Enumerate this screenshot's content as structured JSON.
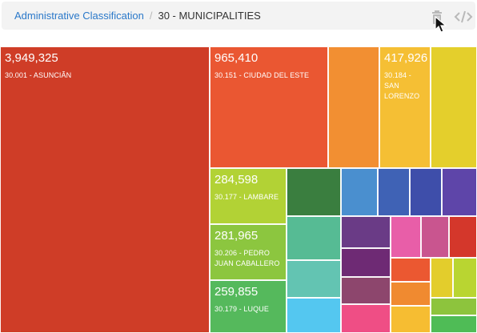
{
  "breadcrumb": {
    "root_label": "Administrative Classification",
    "separator": "/",
    "current_label": "30 - MUNICIPALITIES"
  },
  "toolbar": {
    "delete_icon": "trash-icon",
    "embed_icon": "code-icon",
    "cursor_icon": "mouse-pointer-icon"
  },
  "treemap": {
    "labeled_tiles": [
      {
        "value": "3,949,325",
        "label": "30.001 - ASUNCIÃN",
        "color": "#cf3d27"
      },
      {
        "value": "965,410",
        "label": "30.151 - CIUDAD DEL ESTE",
        "color": "#ea5732"
      },
      {
        "value": "417,926",
        "label": "30.184 - SAN LORENZO",
        "color": "#f5bf34"
      },
      {
        "value": "284,598",
        "label": "30.177 - LAMBARE",
        "color": "#b2d235"
      },
      {
        "value": "281,965",
        "label": "30.206 - PEDRO JUAN CABALLERO",
        "color": "#8cc63f"
      },
      {
        "value": "259,855",
        "label": "30.179 - LUQUE",
        "color": "#55b95c"
      }
    ],
    "unlabeled_tile_colors": [
      "#f28f32",
      "#e4cf2c",
      "#3a7e3f",
      "#4a8fcf",
      "#3f62b5",
      "#3e4eaa",
      "#5e45a9",
      "#56bb94",
      "#6a3b86",
      "#e85ea8",
      "#c9558f",
      "#d4372b",
      "#63c4b2",
      "#6e2a74",
      "#eb5831",
      "#e3cd2c",
      "#b9d531",
      "#54c7f0",
      "#8d466d",
      "#f08a30",
      "#8dc43d",
      "#ef4e85",
      "#f6bd32",
      "#4fbc56"
    ]
  }
}
